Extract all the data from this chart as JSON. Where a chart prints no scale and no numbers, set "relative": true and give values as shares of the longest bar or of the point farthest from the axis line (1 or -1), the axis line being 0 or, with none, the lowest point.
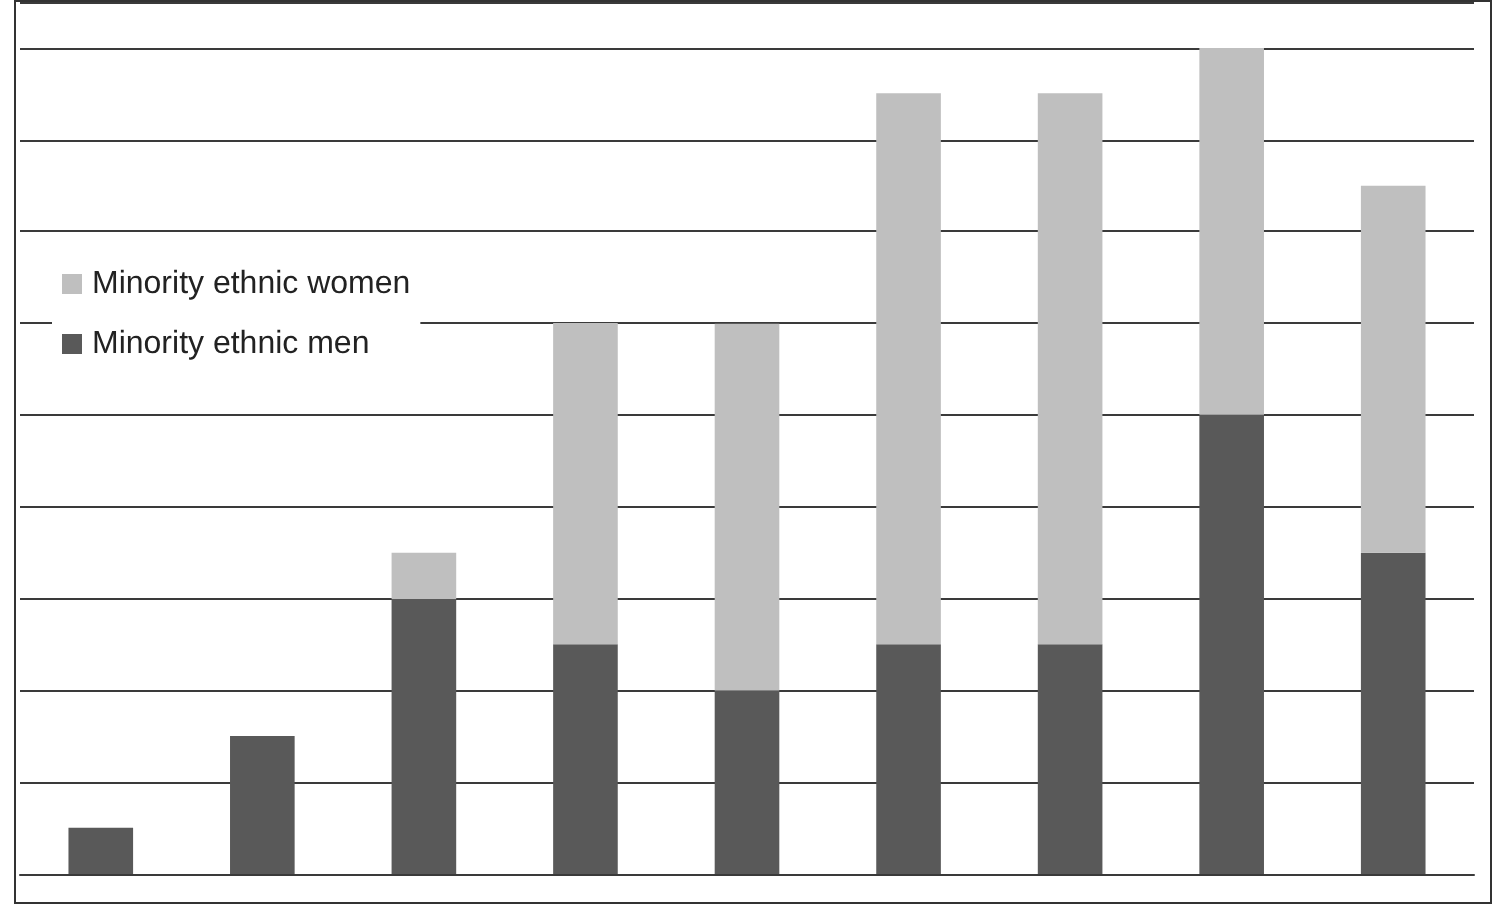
{
  "chart_data": {
    "type": "bar",
    "stacked": true,
    "relative": true,
    "grid": "y",
    "legend": "left",
    "categories": [
      null,
      null,
      null,
      null,
      null,
      null,
      null,
      null,
      null
    ],
    "series": [
      {
        "name": "Minority ethnic men",
        "color": "#595959",
        "values": [
          0.056,
          0.167,
          0.333,
          0.278,
          0.222,
          0.278,
          0.278,
          0.556,
          0.389
        ]
      },
      {
        "name": "Minority ethnic women",
        "color": "#bfbfbf",
        "values": [
          0,
          0,
          0.056,
          0.389,
          0.444,
          0.667,
          0.667,
          0.444,
          0.444
        ]
      }
    ]
  }
}
